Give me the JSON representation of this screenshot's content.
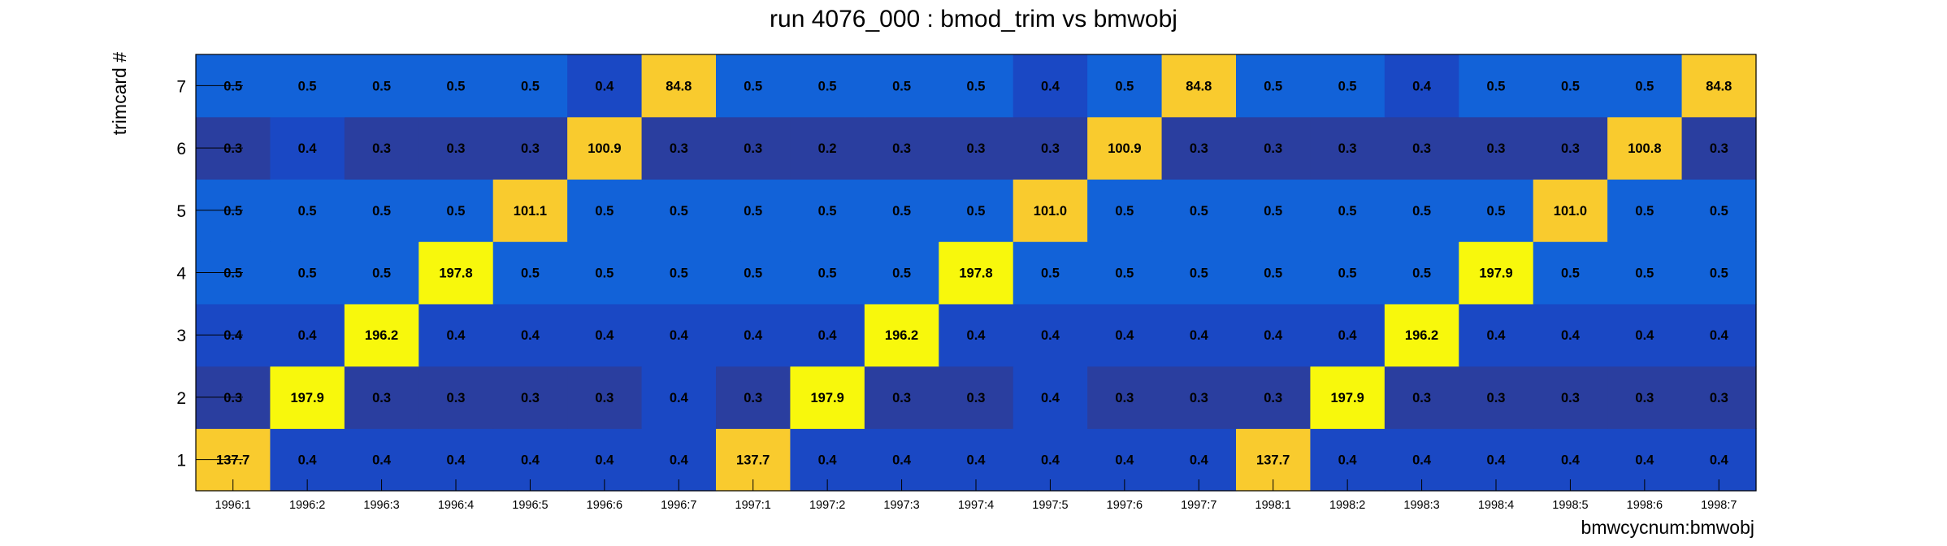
{
  "chart_data": {
    "type": "heatmap",
    "title": "run 4076_000 : bmod_trim vs bmwobj",
    "xlabel": "bmwcycnum:bmwobj",
    "ylabel": "trimcard #",
    "x_categories": [
      "1996:1",
      "1996:2",
      "1996:3",
      "1996:4",
      "1996:5",
      "1996:6",
      "1996:7",
      "1997:1",
      "1997:2",
      "1997:3",
      "1997:4",
      "1997:5",
      "1997:6",
      "1997:7",
      "1998:1",
      "1998:2",
      "1998:3",
      "1998:4",
      "1998:5",
      "1998:6",
      "1998:7"
    ],
    "y_categories": [
      "1",
      "2",
      "3",
      "4",
      "5",
      "6",
      "7"
    ],
    "values": [
      [
        137.7,
        0.4,
        0.4,
        0.4,
        0.4,
        0.4,
        0.4,
        137.7,
        0.4,
        0.4,
        0.4,
        0.4,
        0.4,
        0.4,
        137.7,
        0.4,
        0.4,
        0.4,
        0.4,
        0.4,
        0.4
      ],
      [
        0.3,
        197.9,
        0.3,
        0.3,
        0.3,
        0.3,
        0.4,
        0.3,
        197.9,
        0.3,
        0.3,
        0.4,
        0.3,
        0.3,
        0.3,
        197.9,
        0.3,
        0.3,
        0.3,
        0.3,
        0.3
      ],
      [
        0.4,
        0.4,
        196.2,
        0.4,
        0.4,
        0.4,
        0.4,
        0.4,
        0.4,
        196.2,
        0.4,
        0.4,
        0.4,
        0.4,
        0.4,
        0.4,
        196.2,
        0.4,
        0.4,
        0.4,
        0.4
      ],
      [
        0.5,
        0.5,
        0.5,
        197.8,
        0.5,
        0.5,
        0.5,
        0.5,
        0.5,
        0.5,
        197.8,
        0.5,
        0.5,
        0.5,
        0.5,
        0.5,
        0.5,
        197.9,
        0.5,
        0.5,
        0.5
      ],
      [
        0.5,
        0.5,
        0.5,
        0.5,
        101.1,
        0.5,
        0.5,
        0.5,
        0.5,
        0.5,
        0.5,
        101.0,
        0.5,
        0.5,
        0.5,
        0.5,
        0.5,
        0.5,
        101.0,
        0.5,
        0.5
      ],
      [
        0.3,
        0.4,
        0.3,
        0.3,
        0.3,
        100.9,
        0.3,
        0.3,
        0.2,
        0.3,
        0.3,
        0.3,
        100.9,
        0.3,
        0.3,
        0.3,
        0.3,
        0.3,
        0.3,
        100.8,
        0.3
      ],
      [
        0.5,
        0.5,
        0.5,
        0.5,
        0.5,
        0.4,
        84.8,
        0.5,
        0.5,
        0.5,
        0.5,
        0.4,
        0.5,
        84.8,
        0.5,
        0.5,
        0.4,
        0.5,
        0.5,
        0.5,
        84.8
      ]
    ],
    "colors": {
      "darkest": "#2a3e9f",
      "dark": "#1a48c4",
      "mid": "#1262d8",
      "orange": "#f9cb2e",
      "yellow": "#f8f80c",
      "text": "#000000"
    }
  }
}
